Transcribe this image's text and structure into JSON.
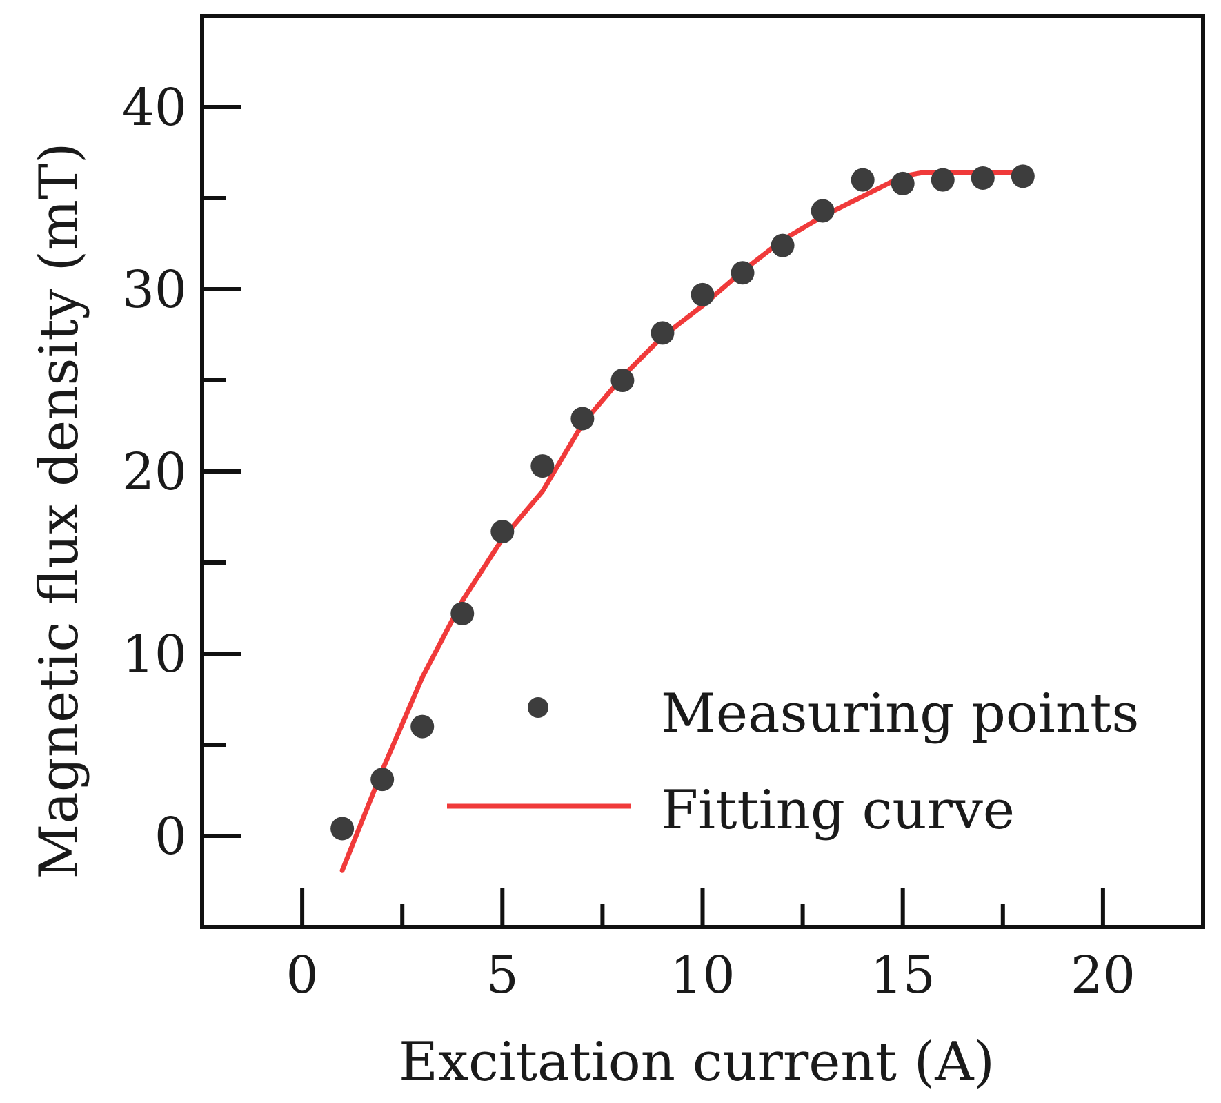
{
  "chart_data": {
    "type": "scatter",
    "title": "",
    "xlabel": "Excitation current (A)",
    "ylabel": "Magnetic flux density (mT)",
    "xlim": [
      -2.5,
      22.5
    ],
    "ylim": [
      -5,
      45
    ],
    "x_ticks": [
      0,
      5,
      10,
      15,
      20
    ],
    "x_tick_labels": [
      "0",
      "5",
      "10",
      "15",
      "20"
    ],
    "x_minor_ticks": [
      2.5,
      7.5,
      12.5,
      17.5
    ],
    "y_ticks": [
      0,
      10,
      20,
      30,
      40
    ],
    "y_tick_labels": [
      "0",
      "10",
      "20",
      "30",
      "40"
    ],
    "y_minor_ticks": [
      5,
      15,
      25,
      35
    ],
    "grid": false,
    "legend_position": "bottom-right",
    "series": [
      {
        "name": "Measuring points",
        "kind": "scatter",
        "color": "#3d3d3d",
        "x": [
          1,
          2,
          3,
          4,
          5,
          6,
          7,
          8,
          9,
          10,
          11,
          12,
          13,
          14,
          15,
          16,
          17,
          18
        ],
        "y": [
          0.4,
          3.1,
          6.0,
          12.2,
          16.7,
          20.3,
          22.9,
          25.0,
          27.6,
          29.7,
          30.9,
          32.4,
          34.3,
          36.0,
          35.8,
          36.0,
          36.1,
          36.2
        ]
      },
      {
        "name": "Fitting curve",
        "kind": "line",
        "color": "#f03a3a",
        "x": [
          1,
          2,
          3,
          4,
          5,
          6,
          7,
          8,
          9,
          10,
          11,
          12,
          13,
          14,
          15,
          15.5,
          16,
          17,
          18
        ],
        "y": [
          -1.9,
          3.6,
          8.7,
          12.9,
          16.3,
          18.9,
          22.6,
          25.2,
          27.4,
          29.1,
          31.0,
          32.7,
          34.0,
          35.1,
          36.2,
          36.4,
          36.4,
          36.4,
          36.4
        ]
      }
    ]
  }
}
